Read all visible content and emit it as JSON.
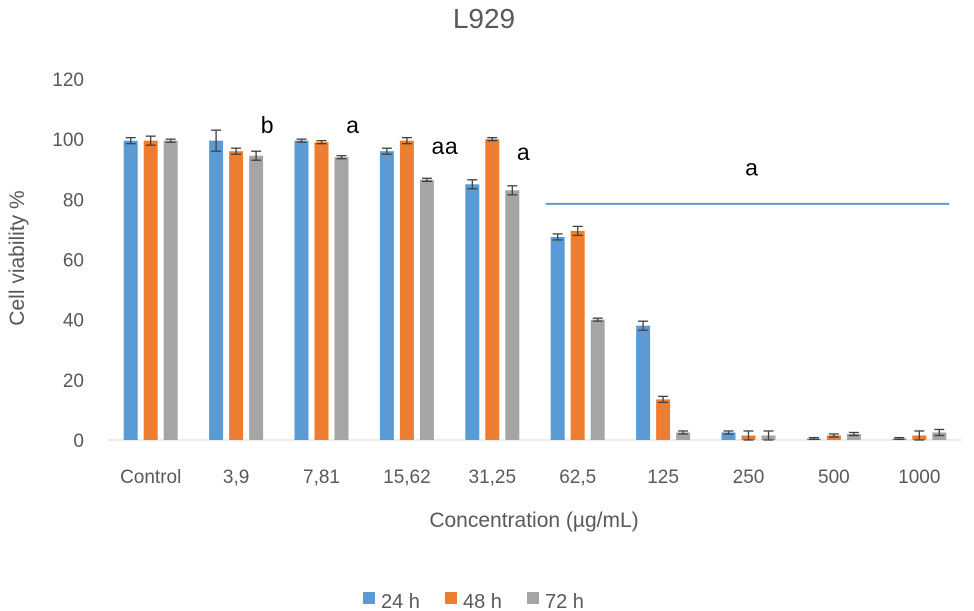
{
  "chart_data": {
    "type": "bar",
    "title": "L929",
    "xlabel": "Concentration (µg/mL)",
    "ylabel": "Cell viability %",
    "ylim": [
      0,
      120
    ],
    "yticks": [
      0,
      20,
      40,
      60,
      80,
      100,
      120
    ],
    "grid": false,
    "legend_position": "bottom",
    "categories": [
      "Control",
      "3,9",
      "7,81",
      "15,62",
      "31,25",
      "62,5",
      "125",
      "250",
      "500",
      "1000"
    ],
    "series": [
      {
        "name": "24 h",
        "color": "#5B9BD5",
        "values": [
          99.5,
          99.5,
          99.5,
          96,
          85,
          67.5,
          38,
          2.5,
          0.5,
          0.5
        ],
        "errors": [
          1,
          3.5,
          0.5,
          1,
          1.5,
          1,
          1.5,
          0.5,
          0.3,
          0.3
        ]
      },
      {
        "name": "48 h",
        "color": "#ED7D31",
        "values": [
          99.5,
          96,
          99,
          99.5,
          100,
          69.5,
          13.5,
          1.5,
          1.5,
          1.5
        ],
        "errors": [
          1.5,
          1,
          0.5,
          1,
          0.5,
          1.5,
          1,
          1.5,
          0.5,
          1.5
        ]
      },
      {
        "name": "72 h",
        "color": "#A5A5A5",
        "values": [
          99.5,
          94.5,
          94,
          86.5,
          83,
          40,
          2.5,
          1.5,
          2,
          2.5
        ],
        "errors": [
          0.5,
          1.5,
          0.5,
          0.5,
          1.5,
          0.5,
          0.5,
          1.5,
          0.5,
          1
        ]
      }
    ],
    "annotations": [
      {
        "text": "b",
        "category": "3,9",
        "y": 102
      },
      {
        "text": "a",
        "category": "7,81",
        "y": 102
      },
      {
        "text": "a",
        "category": "15,62",
        "y": 95
      },
      {
        "text": "a",
        "category": "31,25",
        "y": 95,
        "side": "left"
      },
      {
        "text": "a",
        "category": "31,25",
        "y": 93
      },
      {
        "text": "a",
        "category": "125",
        "y": 88,
        "span_line": true
      }
    ],
    "reference_line": {
      "from_category": "62,5",
      "to_category": "1000",
      "y": 78.5,
      "color": "#5B9BD5"
    }
  }
}
